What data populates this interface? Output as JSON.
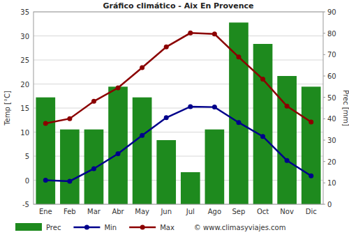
{
  "chart_data": {
    "type": "bar",
    "title": "Gráfico climático - Aix En Provence",
    "ylabel": "Temp [°C]",
    "y2label": "Prec [mm]",
    "annotations": [
      "© www.climasyviajes.com"
    ],
    "categories": [
      "Ene",
      "Feb",
      "Mar",
      "Abr",
      "May",
      "Jun",
      "Jul",
      "Ago",
      "Sep",
      "Oct",
      "Nov",
      "Dic"
    ],
    "series": [
      {
        "name": "Prec",
        "type": "bar",
        "axis": "y2",
        "color": "#1e8a1e",
        "values": [
          50,
          35,
          35,
          55,
          50,
          30,
          15,
          35,
          85,
          75,
          60,
          55
        ]
      },
      {
        "name": "Min",
        "type": "line",
        "color": "#00008b",
        "marker": "circle",
        "values": [
          0,
          -0.2,
          2.4,
          5.5,
          9.3,
          13,
          15.3,
          15.2,
          12,
          9.1,
          4.1,
          0.9
        ]
      },
      {
        "name": "Max",
        "type": "line",
        "color": "#8b0000",
        "marker": "circle",
        "values": [
          11.8,
          12.8,
          16.4,
          19.2,
          23.4,
          27.7,
          30.6,
          30.4,
          25.6,
          21,
          15.4,
          12.1
        ]
      }
    ],
    "ylim": [
      -5,
      35
    ],
    "yticks": [
      -5,
      0,
      5,
      10,
      15,
      20,
      25,
      30,
      35
    ],
    "y2lim": [
      0,
      90
    ],
    "y2ticks": [
      0,
      10,
      20,
      30,
      40,
      50,
      60,
      70,
      80,
      90
    ],
    "grid": true,
    "legend": "bottom"
  }
}
